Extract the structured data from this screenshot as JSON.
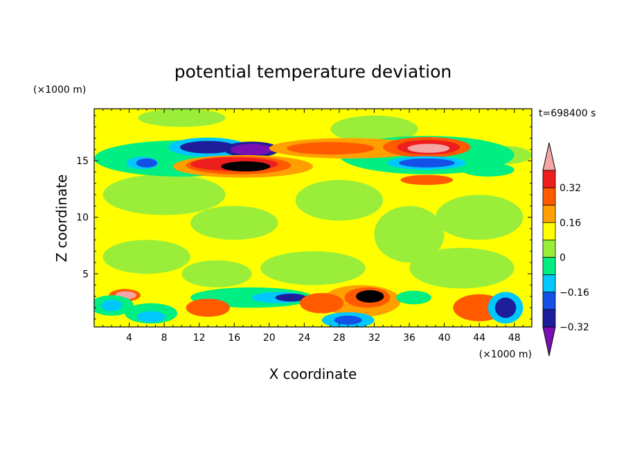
{
  "chart_data": {
    "type": "heatmap",
    "title": "potential temperature deviation",
    "xlabel": "X coordinate",
    "ylabel": "Z coordinate",
    "x_units": "(×1000 m)",
    "y_units": "(×1000 m)",
    "time_label": "t=698400 s",
    "xlim": [
      0,
      50
    ],
    "ylim": [
      0.3,
      19.6
    ],
    "x_ticks": [
      "4",
      "8",
      "12",
      "16",
      "20",
      "24",
      "28",
      "32",
      "36",
      "40",
      "44",
      "48"
    ],
    "y_ticks": [
      "5",
      "10",
      "15"
    ],
    "colorbar": {
      "levels": [
        -0.4,
        -0.32,
        -0.24,
        -0.16,
        -0.08,
        0,
        0.08,
        0.16,
        0.24,
        0.32,
        0.4
      ],
      "tick_labels": [
        "0.32",
        "0.16",
        "0",
        "−0.16",
        "−0.32"
      ],
      "colors": [
        "#7a10b4",
        "#1e1e9a",
        "#1450e6",
        "#00c8ff",
        "#00ee82",
        "#9aee3a",
        "#ffff00",
        "#ffa000",
        "#ff5a00",
        "#ee1e1e",
        "#f4a6a6"
      ]
    },
    "features": [
      {
        "name": "upper negative band west",
        "x": 12.5,
        "z": 16.2,
        "value": -0.36
      },
      {
        "name": "upper negative band minimum",
        "x": 17.5,
        "z": 16.0,
        "value": -0.4
      },
      {
        "name": "upper positive band maximum",
        "x": 17.0,
        "z": 14.5,
        "value": 0.4
      },
      {
        "name": "upper positive band east",
        "x": 38.0,
        "z": 16.1,
        "value": 0.36
      },
      {
        "name": "upper negative band east",
        "x": 38.0,
        "z": 14.8,
        "value": -0.32
      },
      {
        "name": "upper negative left",
        "x": 6.0,
        "z": 14.8,
        "value": -0.32
      },
      {
        "name": "low-level warm anomaly",
        "x": 31.5,
        "z": 3.0,
        "value": 0.4
      },
      {
        "name": "low-level warm left",
        "x": 3.5,
        "z": 3.1,
        "value": 0.32
      },
      {
        "name": "low-level cold pool",
        "x": 21.0,
        "z": 2.9,
        "value": -0.32
      },
      {
        "name": "low-level warm east",
        "x": 44.0,
        "z": 2.0,
        "value": 0.2
      },
      {
        "name": "low-level cold east",
        "x": 47.0,
        "z": 2.0,
        "value": -0.32
      }
    ]
  }
}
